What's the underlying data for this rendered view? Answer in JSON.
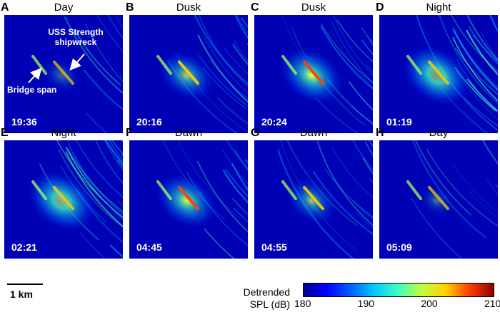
{
  "panels": [
    {
      "letter": "A",
      "condition": "Day",
      "time": "19:36"
    },
    {
      "letter": "B",
      "condition": "Dusk",
      "time": "20:16"
    },
    {
      "letter": "C",
      "condition": "Dusk",
      "time": "20:24"
    },
    {
      "letter": "D",
      "condition": "Night",
      "time": "01:19"
    },
    {
      "letter": "E",
      "condition": "Night",
      "time": "02:21"
    },
    {
      "letter": "F",
      "condition": "Dawn",
      "time": "04:45"
    },
    {
      "letter": "G",
      "condition": "Dawn",
      "time": "04:55"
    },
    {
      "letter": "H",
      "condition": "Day",
      "time": "05:09"
    }
  ],
  "annotations": {
    "shipwreck": "USS Strength shipwreck",
    "bridge": "Bridge span"
  },
  "scale_bar": {
    "label": "1 km"
  },
  "colorbar": {
    "title_line1": "Detrended",
    "title_line2": "SPL (dB)",
    "ticks": [
      "180",
      "190",
      "200",
      "210"
    ]
  },
  "colors": {
    "background": "#0000a0",
    "accent_low": "#00008f",
    "accent_high": "#8f0000"
  }
}
